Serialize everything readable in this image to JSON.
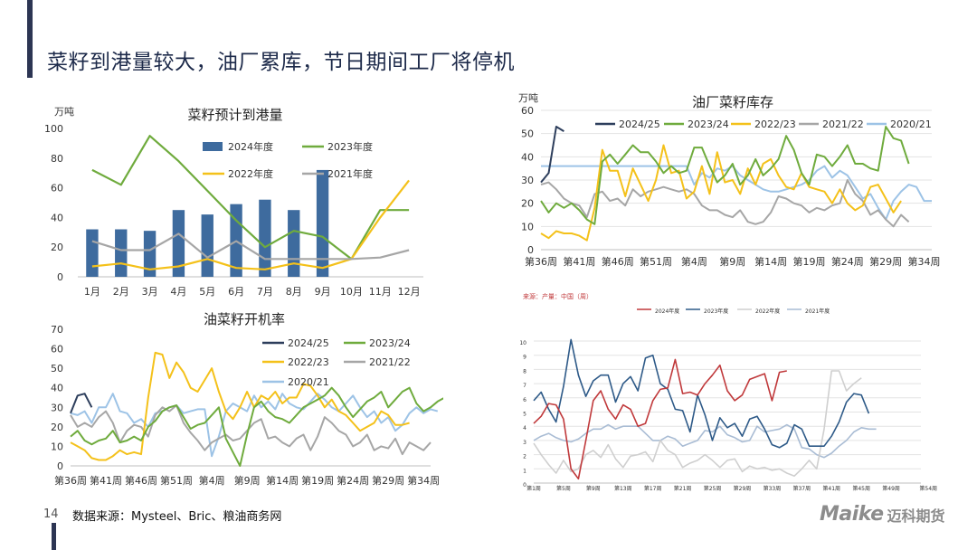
{
  "page": {
    "title": "菜籽到港量较大，油厂累库，节日期间工厂将停机",
    "page_number": "14",
    "source": "数据来源：Mysteel、Bric、粮油商务网",
    "logo_text": "Maike",
    "logo_cn": "迈科期货"
  },
  "chart_data": [
    {
      "id": "arrivals",
      "type": "bar",
      "title": "菜籽预计到港量",
      "unit_label": "万吨",
      "categories": [
        "1月",
        "2月",
        "3月",
        "4月",
        "5月",
        "6月",
        "7月",
        "8月",
        "9月",
        "10月",
        "11月",
        "12月"
      ],
      "ylim": [
        0,
        100
      ],
      "yticks": [
        0,
        20,
        40,
        60,
        80,
        100
      ],
      "bar_series": {
        "name": "2024年度",
        "color": "#3e6b9e",
        "values": [
          32,
          32,
          31,
          45,
          42,
          49,
          52,
          45,
          72,
          null,
          null,
          null
        ]
      },
      "line_series": [
        {
          "name": "2023年度",
          "color": "#6fab3d",
          "values": [
            72,
            62,
            95,
            78,
            58,
            38,
            20,
            31,
            27,
            12,
            45,
            45
          ]
        },
        {
          "name": "2022年度",
          "color": "#f4c11a",
          "values": [
            7,
            9,
            5,
            7,
            12,
            6,
            5,
            9,
            6,
            12,
            40,
            65
          ]
        },
        {
          "name": "2021年度",
          "color": "#a6a6a6",
          "values": [
            24,
            18,
            18,
            29,
            13,
            24,
            12,
            12,
            12,
            12,
            13,
            18
          ]
        }
      ],
      "legend": [
        "2024年度",
        "2023年度",
        "2022年度",
        "2021年度"
      ],
      "grid": false
    },
    {
      "id": "inventory",
      "type": "line",
      "title": "油厂菜籽库存",
      "unit_label": "万吨",
      "ylim": [
        0,
        60
      ],
      "yticks": [
        0,
        10,
        20,
        30,
        40,
        50,
        60
      ],
      "x_count": 52,
      "xtick_labels": [
        "第36周",
        "第41周",
        "第46周",
        "第51周",
        "第4周",
        "第9周",
        "第14周",
        "第19周",
        "第24周",
        "第29周",
        "第34周"
      ],
      "xtick_positions": [
        0,
        5,
        10,
        15,
        20,
        25,
        30,
        35,
        40,
        45,
        50
      ],
      "series": [
        {
          "name": "2024/25",
          "color": "#2d3e5c",
          "values": [
            29,
            33,
            53,
            51
          ]
        },
        {
          "name": "2023/24",
          "color": "#6fab3d",
          "values": [
            21,
            16,
            20,
            18,
            20,
            17,
            13,
            11,
            38,
            41,
            37,
            41,
            45,
            42,
            42,
            38,
            33,
            36,
            33,
            34,
            44,
            44,
            36,
            29,
            32,
            37,
            28,
            32,
            39,
            32,
            35,
            39,
            49,
            43,
            33,
            28,
            41,
            40,
            36,
            40,
            45,
            37,
            37,
            35,
            34,
            53,
            48,
            47,
            37
          ]
        },
        {
          "name": "2022/23",
          "color": "#f4c11a",
          "values": [
            7,
            5,
            8,
            7,
            7,
            6,
            4,
            18,
            43,
            34,
            34,
            23,
            35,
            28,
            21,
            30,
            45,
            33,
            34,
            22,
            25,
            36,
            24,
            42,
            29,
            30,
            24,
            35,
            28,
            37,
            39,
            32,
            27,
            26,
            33,
            27,
            26,
            25,
            20,
            26,
            20,
            17,
            19,
            27,
            28,
            22,
            16,
            21
          ]
        },
        {
          "name": "2021/22",
          "color": "#a6a6a6",
          "values": [
            28,
            29,
            26,
            22,
            20,
            19,
            14,
            24,
            25,
            21,
            22,
            19,
            26,
            23,
            25,
            26,
            27,
            26,
            25,
            26,
            24,
            19,
            17,
            17,
            15,
            14,
            17,
            12,
            11,
            12,
            16,
            23,
            22,
            20,
            19,
            16,
            18,
            17,
            19,
            20,
            30,
            24,
            21,
            15,
            17,
            13,
            10,
            15,
            12
          ]
        },
        {
          "name": "2020/21",
          "color": "#9dc3e6",
          "values": [
            36,
            36,
            36,
            36,
            36,
            36,
            36,
            36,
            36,
            36,
            36,
            36,
            36,
            36,
            36,
            36,
            36,
            36,
            36,
            36,
            28,
            33,
            31,
            35,
            34,
            36,
            32,
            30,
            28,
            26,
            25,
            25,
            26,
            27,
            28,
            30,
            34,
            36,
            31,
            34,
            32,
            27,
            22,
            24,
            18,
            13,
            21,
            25,
            28,
            27,
            21,
            21
          ]
        }
      ],
      "legend": [
        "2024/25",
        "2023/24",
        "2022/23",
        "2021/22",
        "2020/21"
      ],
      "grid": true
    },
    {
      "id": "operating_rate",
      "type": "line",
      "title": "油菜籽开机率",
      "ylim": [
        0,
        70
      ],
      "yticks": [
        0,
        10,
        20,
        30,
        40,
        50,
        60,
        70
      ],
      "x_count": 52,
      "xtick_labels": [
        "第36周",
        "第41周",
        "第46周",
        "第51周",
        "第4周",
        "第9周",
        "第14周",
        "第19周",
        "第24周",
        "第29周",
        "第34周"
      ],
      "xtick_positions": [
        0,
        5,
        10,
        15,
        20,
        25,
        30,
        35,
        40,
        45,
        50
      ],
      "series": [
        {
          "name": "2024/25",
          "color": "#2d3e5c",
          "values": [
            27,
            36,
            37,
            30
          ]
        },
        {
          "name": "2023/24",
          "color": "#6fab3d",
          "values": [
            15,
            18,
            13,
            11,
            13,
            14,
            18,
            12,
            13,
            15,
            13,
            20,
            23,
            28,
            30,
            31,
            25,
            19,
            21,
            22,
            26,
            30,
            14,
            7,
            0,
            16,
            30,
            33,
            28,
            25,
            24,
            22,
            26,
            30,
            32,
            34,
            36,
            40,
            36,
            30,
            25,
            29,
            33,
            35,
            38,
            30,
            34,
            38,
            40,
            32,
            28,
            30,
            33,
            35,
            33
          ]
        },
        {
          "name": "2022/23",
          "color": "#f4c11a",
          "values": [
            12,
            10,
            8,
            4,
            3,
            3,
            5,
            8,
            6,
            7,
            6,
            35,
            58,
            57,
            45,
            53,
            48,
            40,
            38,
            44,
            50,
            38,
            28,
            24,
            30,
            38,
            30,
            36,
            34,
            38,
            32,
            35,
            35,
            42,
            41,
            36,
            30,
            34,
            28,
            26,
            22,
            18,
            20,
            22,
            28,
            26,
            21,
            21,
            22
          ]
        },
        {
          "name": "2021/22",
          "color": "#a6a6a6",
          "values": [
            26,
            20,
            22,
            20,
            25,
            28,
            22,
            12,
            18,
            21,
            20,
            15,
            26,
            30,
            28,
            31,
            22,
            17,
            13,
            8,
            12,
            14,
            16,
            13,
            14,
            18,
            22,
            24,
            14,
            15,
            12,
            10,
            14,
            16,
            8,
            15,
            25,
            22,
            18,
            16,
            10,
            12,
            16,
            8,
            10,
            9,
            14,
            6,
            12,
            10,
            8,
            12
          ]
        },
        {
          "name": "2020/21",
          "color": "#9dc3e6",
          "values": [
            27,
            26,
            28,
            22,
            30,
            30,
            37,
            28,
            27,
            22,
            24,
            20,
            27,
            28,
            30,
            31,
            27,
            28,
            29,
            29,
            5,
            15,
            28,
            32,
            30,
            28,
            36,
            30,
            33,
            29,
            37,
            32,
            30,
            29,
            33,
            37,
            34,
            30,
            28,
            32,
            36,
            30,
            25,
            28,
            22,
            25,
            18,
            21,
            27,
            30,
            27,
            29,
            28
          ]
        }
      ],
      "legend": [
        "2024/25",
        "2023/24",
        "2022/23",
        "2021/22",
        "2020/21"
      ],
      "grid": false
    },
    {
      "id": "small_chart",
      "type": "line",
      "header_text": "来源：产量：中国（周）",
      "ylim": [
        0,
        10
      ],
      "yticks": [
        0,
        1,
        2,
        3,
        4,
        5,
        6,
        7,
        8,
        9,
        10
      ],
      "x_count": 53,
      "xtick_labels": [
        "第1周",
        "第5周",
        "第9周",
        "第13周",
        "第17周",
        "第21周",
        "第25周",
        "第29周",
        "第33周",
        "第37周",
        "第41周",
        "第45周",
        "第49周",
        "第54周"
      ],
      "xtick_positions": [
        0,
        4,
        8,
        12,
        16,
        20,
        24,
        28,
        32,
        36,
        40,
        44,
        48,
        53
      ],
      "series": [
        {
          "name": "2024年度",
          "color": "#c0393b",
          "values": [
            4.2,
            4.7,
            5.6,
            5.5,
            4.5,
            1.0,
            0.3,
            3.0,
            5.8,
            6.5,
            5.2,
            4.5,
            5.5,
            5.2,
            4.0,
            4.2,
            5.8,
            6.6,
            6.7,
            8.7,
            6.3,
            6.4,
            6.2,
            7.0,
            7.6,
            8.3,
            6.5,
            5.8,
            6.2,
            7.3,
            7.5,
            7.7,
            5.8,
            7.8,
            7.9
          ]
        },
        {
          "name": "2023年度",
          "color": "#2e5a88",
          "values": [
            5.8,
            6.4,
            5.2,
            4.3,
            6.8,
            10.1,
            7.6,
            6.1,
            7.2,
            7.6,
            7.6,
            5.7,
            7.0,
            7.5,
            6.5,
            8.8,
            9.0,
            7.0,
            6.6,
            5.2,
            5.1,
            3.6,
            6.2,
            4.8,
            3.0,
            4.6,
            3.9,
            4.2,
            3.3,
            4.5,
            4.7,
            3.8,
            2.7,
            2.5,
            2.8,
            4.1,
            3.8,
            2.6,
            2.6,
            2.6,
            3.3,
            4.3,
            5.7,
            6.3,
            6.2,
            4.9
          ]
        },
        {
          "name": "2022年度",
          "color": "#cfcfcf",
          "values": [
            2.8,
            2.0,
            1.3,
            0.7,
            1.6,
            0.8,
            1.0,
            2.0,
            2.3,
            1.8,
            2.7,
            1.7,
            1.1,
            1.9,
            2.0,
            2.2,
            1.5,
            3.0,
            2.3,
            2.0,
            1.1,
            1.4,
            1.6,
            2.0,
            1.6,
            1.1,
            1.6,
            1.7,
            0.8,
            1.2,
            1.0,
            1.1,
            0.9,
            1.0,
            0.7,
            0.5,
            1.0,
            1.6,
            1.0,
            3.8,
            7.9,
            7.9,
            6.5,
            7.0,
            7.4
          ]
        },
        {
          "name": "2021年度",
          "color": "#a9bcd4",
          "values": [
            3.0,
            3.3,
            3.5,
            3.2,
            3.0,
            2.9,
            3.1,
            3.5,
            3.8,
            3.8,
            4.1,
            3.8,
            4.0,
            4.0,
            4.0,
            3.5,
            3.0,
            3.0,
            3.3,
            3.1,
            2.6,
            2.8,
            3.0,
            3.7,
            3.6,
            4.0,
            3.4,
            3.2,
            2.9,
            3.0,
            4.0,
            3.6,
            3.7,
            3.8,
            4.1,
            3.8,
            2.5,
            2.4,
            2.0,
            1.8,
            2.1,
            2.6,
            3.0,
            3.6,
            3.9,
            3.8,
            3.8
          ]
        }
      ],
      "legend": [
        "2024年度",
        "2023年度",
        "2022年度",
        "2021年度"
      ],
      "grid": true
    }
  ]
}
